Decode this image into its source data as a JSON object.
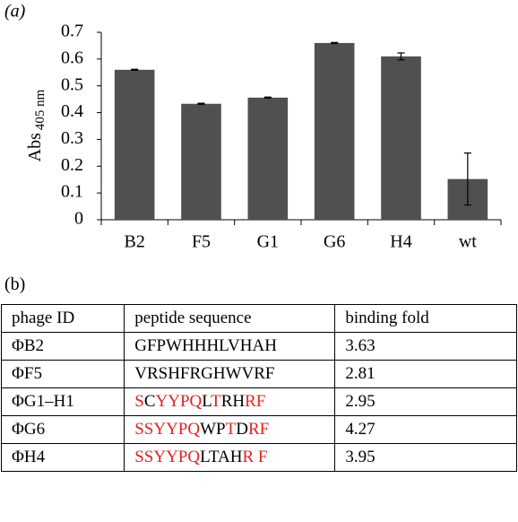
{
  "chart_data": {
    "type": "bar",
    "panel_label": "(a)",
    "ylabel": "Abs",
    "ylabel_sub": "405 nm",
    "categories": [
      "B2",
      "F5",
      "G1",
      "G6",
      "H4",
      "wt"
    ],
    "values": [
      0.56,
      0.433,
      0.456,
      0.66,
      0.61,
      0.152
    ],
    "errors": [
      0.002,
      0.002,
      0.002,
      0.002,
      0.013,
      0.097
    ],
    "color": "#505050",
    "ylim": [
      0,
      0.7
    ],
    "yticks": [
      0,
      0.1,
      0.2,
      0.3,
      0.4,
      0.5,
      0.6,
      0.7
    ],
    "grid": false
  },
  "table": {
    "panel_label": "(b)",
    "header": [
      "phage ID",
      "peptide sequence",
      "binding fold"
    ],
    "rows": [
      {
        "id": "ΦB2",
        "sequence": [
          {
            "text": "GFPWHHHLVHAH",
            "color": "#000000"
          }
        ],
        "fold": 3.63
      },
      {
        "id": "ΦF5",
        "sequence": [
          {
            "text": "VRSHFRGHWVRF",
            "color": "#000000"
          }
        ],
        "fold": 2.81
      },
      {
        "id": "ΦG1–H1",
        "sequence": [
          {
            "text": "S",
            "color": "#e8201c"
          },
          {
            "text": "C",
            "color": "#000000"
          },
          {
            "text": "YYPQ",
            "color": "#e8201c"
          },
          {
            "text": "L",
            "color": "#000000"
          },
          {
            "text": "T",
            "color": "#e8201c"
          },
          {
            "text": "RH",
            "color": "#000000"
          },
          {
            "text": "RF",
            "color": "#e8201c"
          }
        ],
        "fold": 2.95
      },
      {
        "id": "ΦG6",
        "sequence": [
          {
            "text": "SSYYPQ",
            "color": "#e8201c"
          },
          {
            "text": "WP",
            "color": "#000000"
          },
          {
            "text": "T",
            "color": "#e8201c"
          },
          {
            "text": "D",
            "color": "#000000"
          },
          {
            "text": "RF",
            "color": "#e8201c"
          }
        ],
        "fold": 4.27
      },
      {
        "id": "ΦH4",
        "sequence": [
          {
            "text": "SSYYPQ",
            "color": "#e8201c"
          },
          {
            "text": "LTAH",
            "color": "#000000"
          },
          {
            "text": "R F",
            "color": "#e8201c"
          }
        ],
        "fold": 3.95
      }
    ]
  }
}
